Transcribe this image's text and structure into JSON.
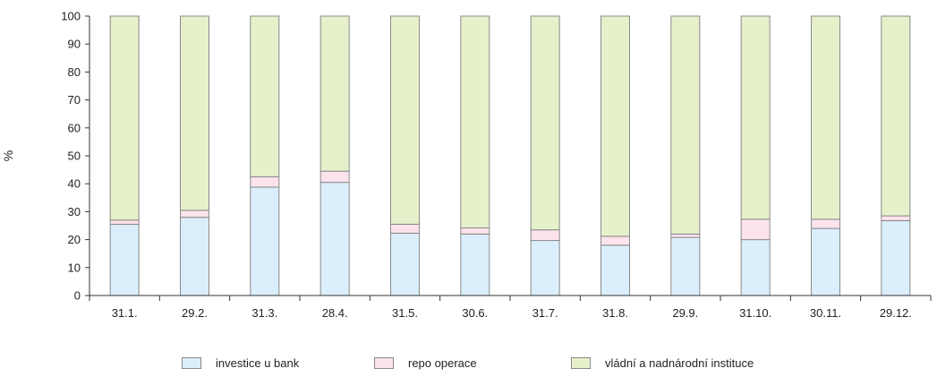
{
  "chart_data": {
    "type": "bar",
    "stacked": true,
    "ylabel": "%",
    "ylim": [
      0,
      100
    ],
    "yticks": [
      0,
      10,
      20,
      30,
      40,
      50,
      60,
      70,
      80,
      90,
      100
    ],
    "categories": [
      "31.1.",
      "29.2.",
      "31.3.",
      "28.4.",
      "31.5.",
      "30.6.",
      "31.7.",
      "31.8.",
      "29.9.",
      "31.10.",
      "30.11.",
      "29.12."
    ],
    "series": [
      {
        "name": "investice u bank",
        "color": "#daeefb",
        "values": [
          25.5,
          28,
          38.8,
          40.5,
          22.3,
          22,
          19.7,
          18,
          20.8,
          20,
          24,
          26.8
        ]
      },
      {
        "name": "repo operace",
        "color": "#fde3ec",
        "values": [
          1.5,
          2.5,
          3.7,
          4,
          3.2,
          2.2,
          3.8,
          3.2,
          1.2,
          7.3,
          3.3,
          1.7
        ]
      },
      {
        "name": "vládní a nadnárodní instituce",
        "color": "#e6f1cb",
        "values": [
          73,
          69.5,
          57.5,
          55.5,
          74.5,
          75.8,
          76.5,
          78.8,
          78,
          72.7,
          72.7,
          71.5
        ]
      }
    ],
    "grid": false,
    "legend_position": "bottom"
  }
}
